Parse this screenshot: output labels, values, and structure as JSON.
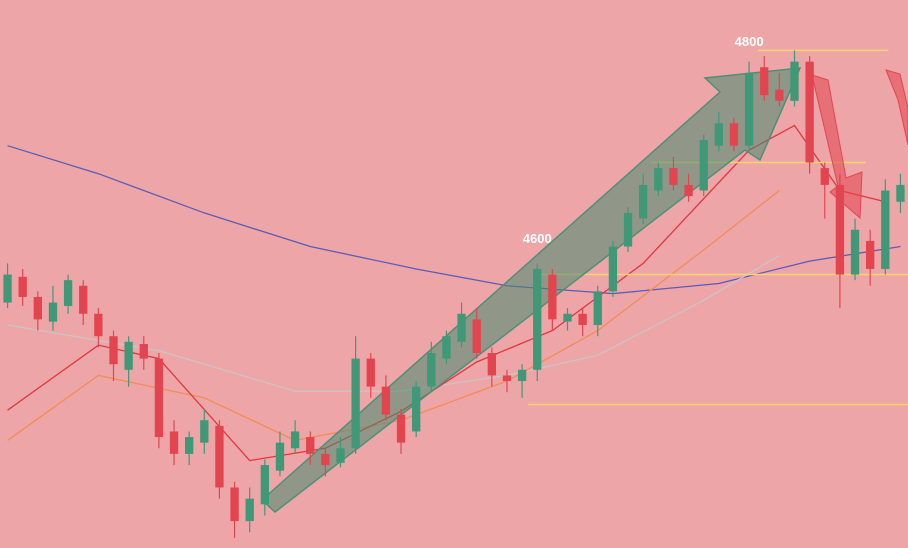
{
  "chart_data": {
    "type": "candlestick",
    "xlim": [
      -0.5,
      59.5
    ],
    "ylim": [
      4356,
      4845
    ],
    "up_color": "#3f9878",
    "down_color": "#e2454f",
    "open": [
      4575,
      4598,
      4580,
      4558,
      4572,
      4590,
      4565,
      4545,
      4515,
      4538,
      4525,
      4460,
      4440,
      4450,
      4465,
      4410,
      4380,
      4395,
      4425,
      4445,
      4455,
      4440,
      4432,
      4445,
      4525,
      4500,
      4475,
      4460,
      4500,
      4525,
      4540,
      4560,
      4530,
      4510,
      4505,
      4515,
      4600,
      4558,
      4565,
      4555,
      4585,
      4625,
      4650,
      4675,
      4695,
      4680,
      4675,
      4715,
      4735,
      4715,
      4785,
      4765,
      4755,
      4790,
      4695,
      4680,
      4600,
      4630,
      4605,
      4665
    ],
    "high": [
      4610,
      4605,
      4585,
      4590,
      4600,
      4595,
      4570,
      4550,
      4545,
      4545,
      4530,
      4470,
      4460,
      4480,
      4470,
      4415,
      4410,
      4435,
      4460,
      4470,
      4460,
      4445,
      4455,
      4545,
      4530,
      4510,
      4480,
      4505,
      4540,
      4550,
      4575,
      4570,
      4535,
      4515,
      4520,
      4610,
      4605,
      4570,
      4570,
      4590,
      4630,
      4660,
      4690,
      4700,
      4705,
      4690,
      4725,
      4745,
      4740,
      4790,
      4795,
      4780,
      4800,
      4795,
      4700,
      4690,
      4650,
      4640,
      4685,
      4690
    ],
    "low": [
      4570,
      4572,
      4550,
      4550,
      4565,
      4555,
      4535,
      4505,
      4500,
      4515,
      4445,
      4430,
      4430,
      4440,
      4400,
      4365,
      4370,
      4385,
      4420,
      4440,
      4430,
      4420,
      4428,
      4440,
      4490,
      4470,
      4440,
      4455,
      4495,
      4520,
      4535,
      4525,
      4500,
      4495,
      4490,
      4505,
      4550,
      4550,
      4545,
      4545,
      4580,
      4620,
      4645,
      4670,
      4675,
      4665,
      4670,
      4710,
      4710,
      4710,
      4755,
      4750,
      4750,
      4690,
      4650,
      4570,
      4595,
      4590,
      4600,
      4655
    ],
    "close": [
      4600,
      4580,
      4560,
      4575,
      4595,
      4565,
      4545,
      4520,
      4540,
      4525,
      4455,
      4440,
      4455,
      4470,
      4410,
      4380,
      4400,
      4430,
      4450,
      4460,
      4440,
      4430,
      4445,
      4525,
      4500,
      4475,
      4450,
      4500,
      4530,
      4545,
      4565,
      4530,
      4510,
      4505,
      4515,
      4605,
      4560,
      4565,
      4555,
      4585,
      4625,
      4655,
      4680,
      4695,
      4680,
      4670,
      4720,
      4735,
      4715,
      4780,
      4760,
      4755,
      4790,
      4700,
      4680,
      4600,
      4640,
      4605,
      4675,
      4680
    ],
    "lines": [
      {
        "color": "#5a5cb8",
        "x": [
          0,
          6,
          13,
          20,
          27,
          33,
          40,
          47,
          53,
          59
        ],
        "values": [
          4715,
          4690,
          4655,
          4625,
          4605,
          4590,
          4583,
          4592,
          4612,
          4625
        ]
      },
      {
        "color": "#cdc4c4",
        "x": [
          0,
          10,
          19,
          26,
          33,
          39,
          46,
          51
        ],
        "values": [
          4555,
          4532,
          4496,
          4496,
          4510,
          4528,
          4577,
          4617
        ]
      },
      {
        "color": "#f28c55",
        "x": [
          0,
          6,
          13,
          19,
          26,
          33,
          39,
          46,
          51
        ],
        "values": [
          4452,
          4510,
          4490,
          4452,
          4470,
          4505,
          4550,
          4622,
          4675
        ]
      },
      {
        "color": "#e2363f",
        "x": [
          0,
          6,
          10,
          16,
          21,
          26,
          31,
          36,
          42,
          49,
          52,
          55,
          58
        ],
        "values": [
          4479,
          4537,
          4525,
          4434,
          4445,
          4478,
          4522,
          4550,
          4610,
          4711,
          4733,
          4675,
          4665
        ]
      }
    ],
    "levels": [
      {
        "value": 4800,
        "start": 49.6,
        "end": 58.2
      },
      {
        "value": 4700,
        "start": 42.5,
        "end": 56.7
      },
      {
        "value": 4600,
        "start": 34.9,
        "end": 59.5
      },
      {
        "value": 4484,
        "start": 34.4,
        "end": 59.5
      }
    ],
    "level_color": "#f7d56a",
    "annotations": [
      {
        "value": 4600,
        "x": 35
      },
      {
        "value": 4800,
        "x": 49
      }
    ]
  }
}
